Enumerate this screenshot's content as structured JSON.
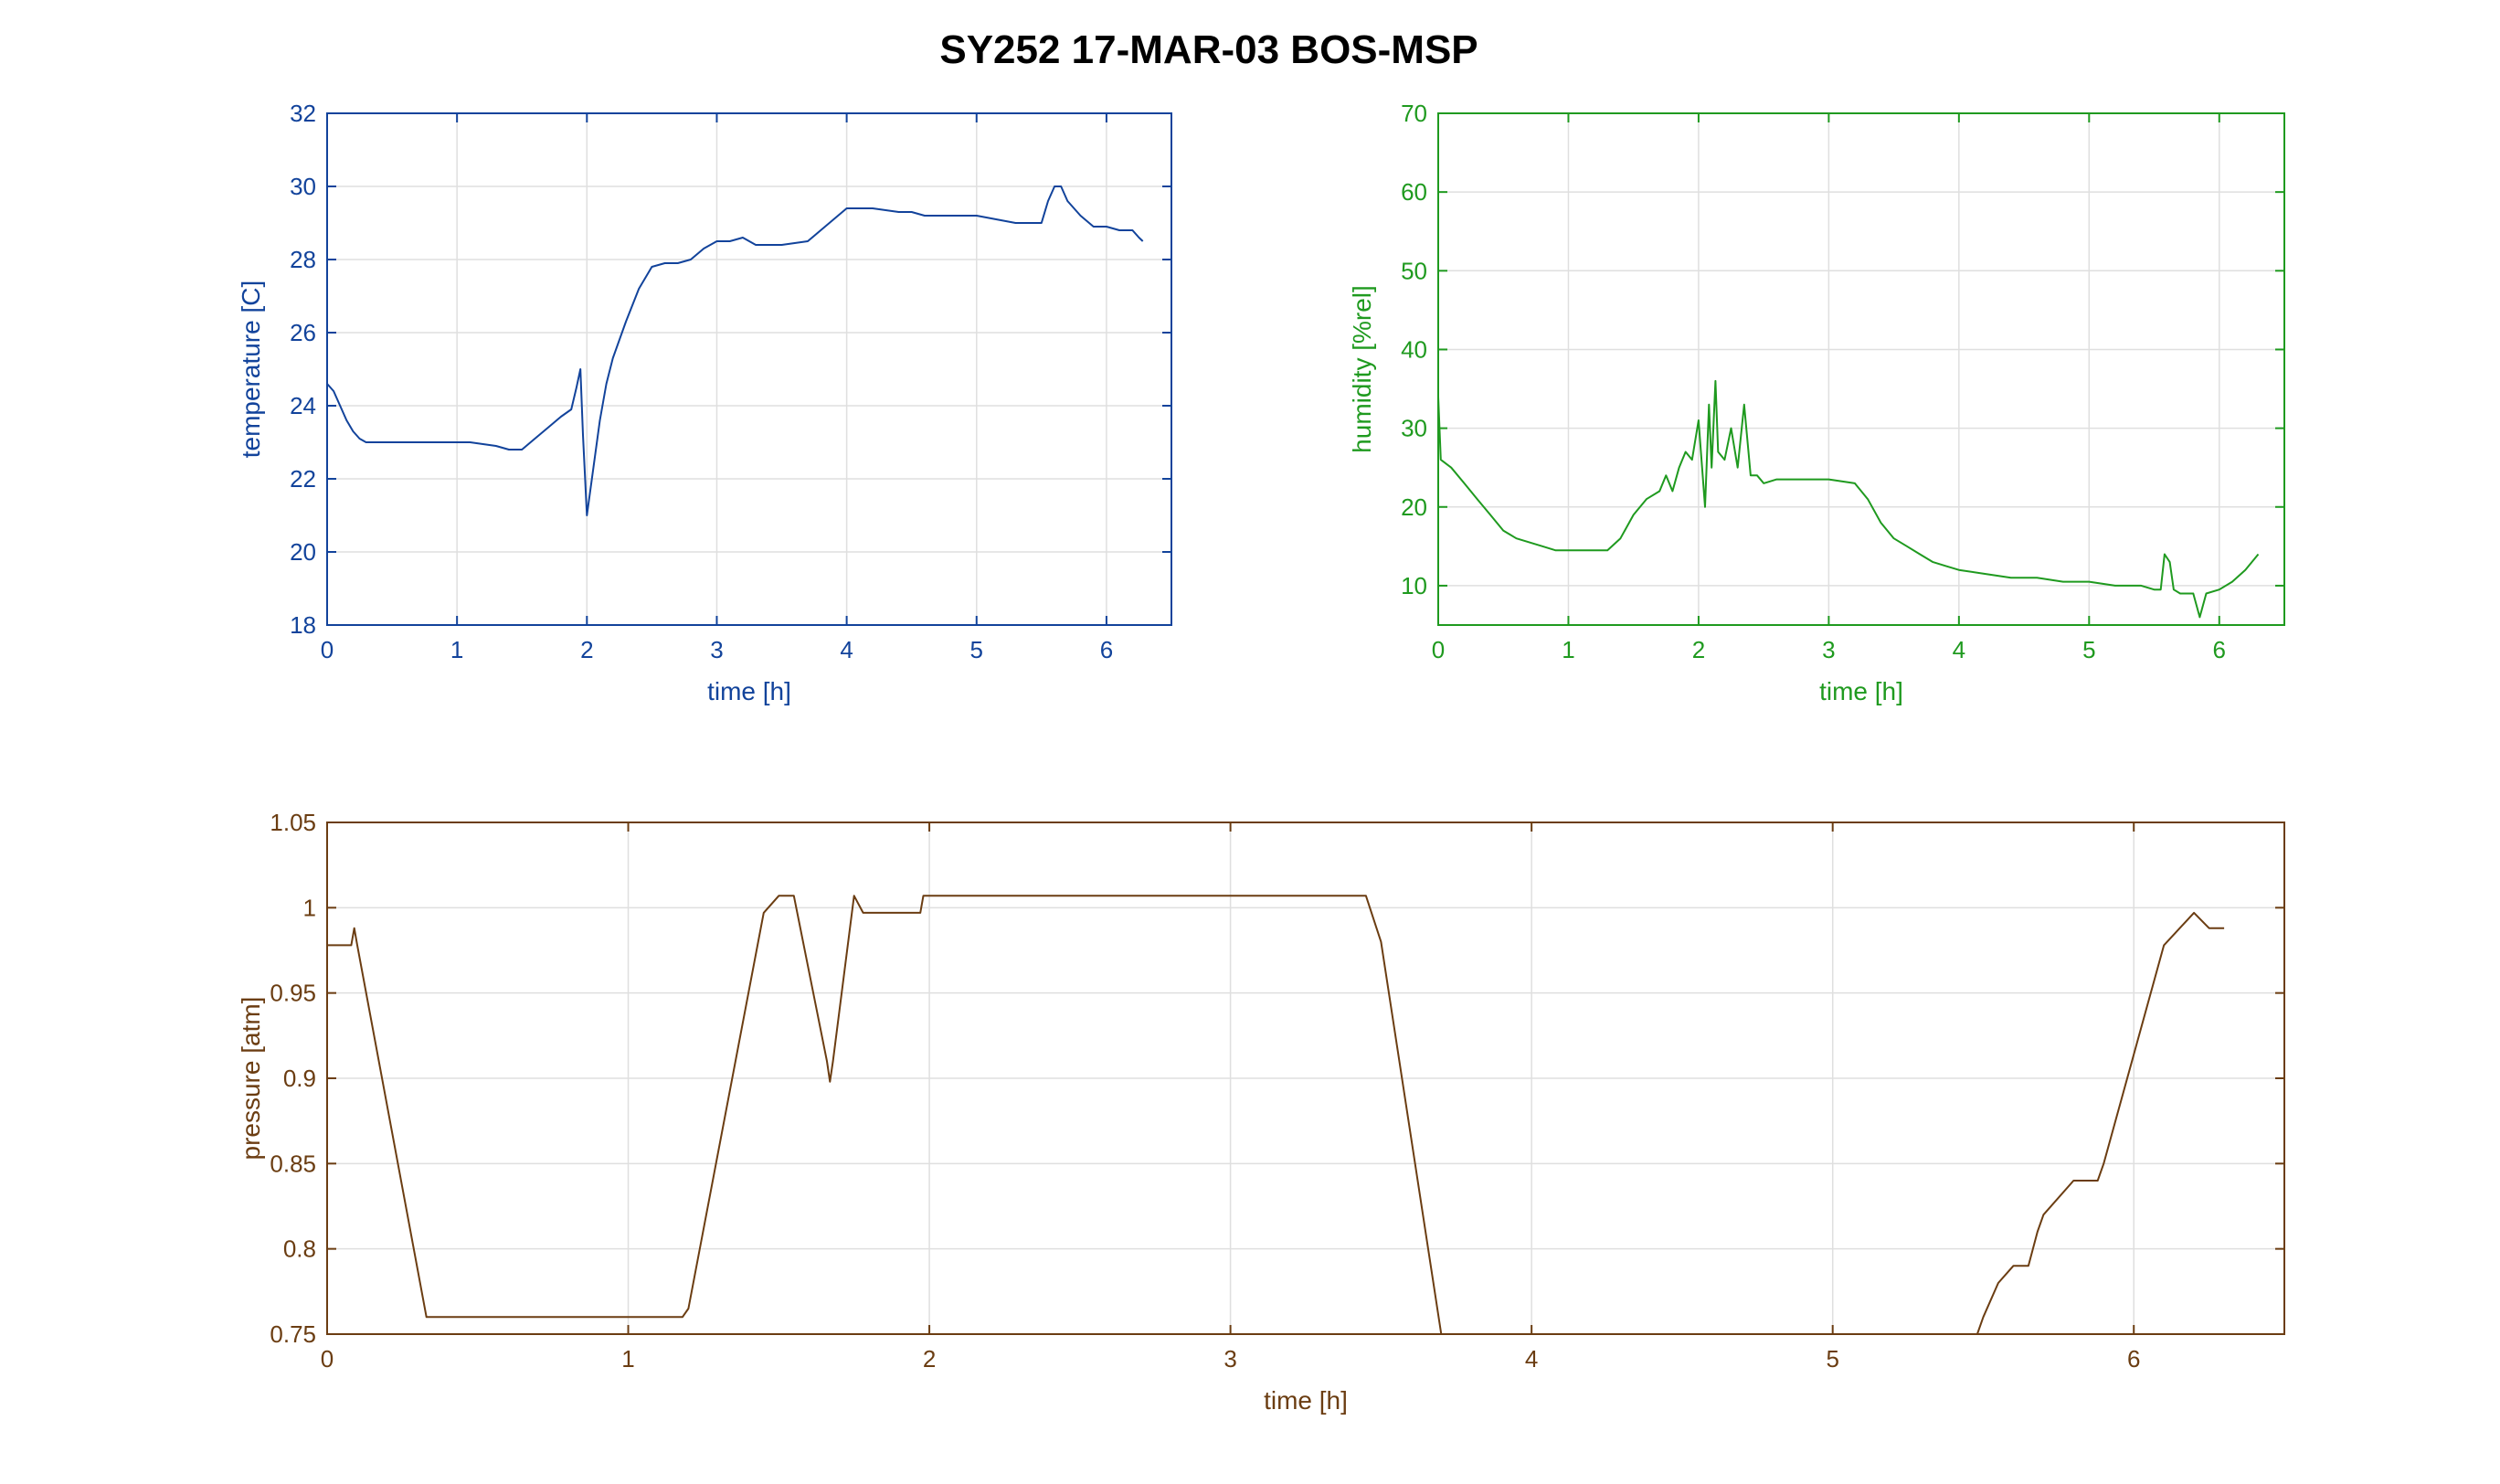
{
  "title": "SY252 17-MAR-03 BOS-MSP",
  "chart_data": [
    {
      "type": "line",
      "id": "temperature",
      "xlabel": "time [h]",
      "ylabel": "temperature [C]",
      "xlim": [
        0,
        6.5
      ],
      "ylim": [
        18,
        32
      ],
      "xticks": [
        0,
        1,
        2,
        3,
        4,
        5,
        6
      ],
      "yticks": [
        18,
        20,
        22,
        24,
        26,
        28,
        30,
        32
      ],
      "grid": true,
      "color": "#12439b",
      "series": [
        {
          "x": [
            0,
            0.05,
            0.1,
            0.15,
            0.2,
            0.25,
            0.3,
            0.5,
            0.8,
            1.1,
            1.3,
            1.4,
            1.5,
            1.6,
            1.7,
            1.8,
            1.88,
            1.92,
            1.95,
            1.97,
            2.0,
            2.05,
            2.1,
            2.15,
            2.2,
            2.3,
            2.4,
            2.5,
            2.6,
            2.7,
            2.8,
            2.9,
            3.0,
            3.1,
            3.2,
            3.3,
            3.5,
            3.7,
            3.8,
            3.9,
            4.0,
            4.2,
            4.4,
            4.5,
            4.6,
            4.8,
            5.0,
            5.3,
            5.5,
            5.55,
            5.6,
            5.65,
            5.7,
            5.8,
            5.9,
            6.0,
            6.1,
            6.2,
            6.25,
            6.28
          ],
          "values": [
            24.6,
            24.4,
            24.0,
            23.6,
            23.3,
            23.1,
            23.0,
            23.0,
            23.0,
            23.0,
            22.9,
            22.8,
            22.8,
            23.1,
            23.4,
            23.7,
            23.9,
            24.5,
            25.0,
            23.2,
            21.0,
            22.3,
            23.6,
            24.6,
            25.3,
            26.3,
            27.2,
            27.8,
            27.9,
            27.9,
            28.0,
            28.3,
            28.5,
            28.5,
            28.6,
            28.4,
            28.4,
            28.5,
            28.8,
            29.1,
            29.4,
            29.4,
            29.3,
            29.3,
            29.2,
            29.2,
            29.2,
            29.0,
            29.0,
            29.6,
            30.0,
            30.0,
            29.6,
            29.2,
            28.9,
            28.9,
            28.8,
            28.8,
            28.6,
            28.5
          ]
        }
      ]
    },
    {
      "type": "line",
      "id": "humidity",
      "xlabel": "time [h]",
      "ylabel": "humidity [%rel]",
      "xlim": [
        0,
        6.5
      ],
      "ylim": [
        5,
        70
      ],
      "xticks": [
        0,
        1,
        2,
        3,
        4,
        5,
        6
      ],
      "yticks": [
        10,
        20,
        30,
        40,
        50,
        60,
        70
      ],
      "grid": true,
      "color": "#1f9a1f",
      "series": [
        {
          "x": [
            0,
            0.02,
            0.1,
            0.2,
            0.3,
            0.4,
            0.5,
            0.6,
            0.8,
            0.9,
            1.0,
            1.1,
            1.2,
            1.3,
            1.4,
            1.5,
            1.6,
            1.7,
            1.75,
            1.8,
            1.85,
            1.9,
            1.95,
            2.0,
            2.05,
            2.08,
            2.1,
            2.13,
            2.15,
            2.2,
            2.25,
            2.3,
            2.35,
            2.4,
            2.45,
            2.5,
            2.6,
            2.7,
            2.8,
            3.0,
            3.2,
            3.3,
            3.4,
            3.5,
            3.6,
            3.7,
            3.8,
            3.9,
            4.0,
            4.2,
            4.4,
            4.6,
            4.8,
            5.0,
            5.2,
            5.4,
            5.5,
            5.55,
            5.58,
            5.62,
            5.65,
            5.7,
            5.8,
            5.85,
            5.9,
            6.0,
            6.1,
            6.2,
            6.25,
            6.3
          ],
          "values": [
            34,
            26,
            25,
            23,
            21,
            19,
            17,
            16,
            15,
            14.5,
            14.5,
            14.5,
            14.5,
            14.5,
            16,
            19,
            21,
            22,
            24,
            22,
            25,
            27,
            26,
            31,
            20,
            33,
            25,
            36,
            27,
            26,
            30,
            25,
            33,
            24,
            24,
            23,
            23.5,
            23.5,
            23.5,
            23.5,
            23,
            21,
            18,
            16,
            15,
            14,
            13,
            12.5,
            12,
            11.5,
            11,
            11,
            10.5,
            10.5,
            10,
            10,
            9.5,
            9.5,
            14,
            13,
            9.5,
            9,
            9,
            6,
            9,
            9.5,
            10.5,
            12,
            13,
            14
          ]
        }
      ]
    },
    {
      "type": "line",
      "id": "pressure",
      "xlabel": "time [h]",
      "ylabel": "pressure [atm]",
      "xlim": [
        0,
        6.5
      ],
      "ylim": [
        0.75,
        1.05
      ],
      "xticks": [
        0,
        1,
        2,
        3,
        4,
        5,
        6
      ],
      "yticks": [
        0.75,
        0.8,
        0.85,
        0.9,
        0.95,
        1.0,
        1.05
      ],
      "ytick_labels": [
        "0.75",
        "0.8",
        "0.85",
        "0.9",
        "0.95",
        "1",
        "1.05"
      ],
      "grid": true,
      "color": "#6b3d12",
      "series": [
        {
          "x": [
            0,
            0.08,
            0.09,
            0.1,
            0.33,
            1.18,
            1.2,
            1.45,
            1.5,
            1.55,
            1.66,
            1.67,
            1.68,
            1.75,
            1.78,
            1.97,
            1.98,
            3.45,
            3.5,
            3.7,
            5.48,
            5.5,
            5.55,
            5.6,
            5.65,
            5.68,
            5.7,
            5.8,
            5.88,
            5.9,
            6.1,
            6.2,
            6.25,
            6.3
          ],
          "values": [
            0.978,
            0.978,
            0.988,
            0.978,
            0.76,
            0.76,
            0.765,
            0.997,
            1.007,
            1.007,
            0.91,
            0.898,
            0.91,
            1.007,
            0.997,
            0.997,
            1.007,
            1.007,
            0.98,
            0.75,
            0.75,
            0.76,
            0.78,
            0.79,
            0.79,
            0.81,
            0.82,
            0.84,
            0.84,
            0.85,
            0.978,
            0.997,
            0.988,
            0.988
          ]
        }
      ]
    }
  ]
}
